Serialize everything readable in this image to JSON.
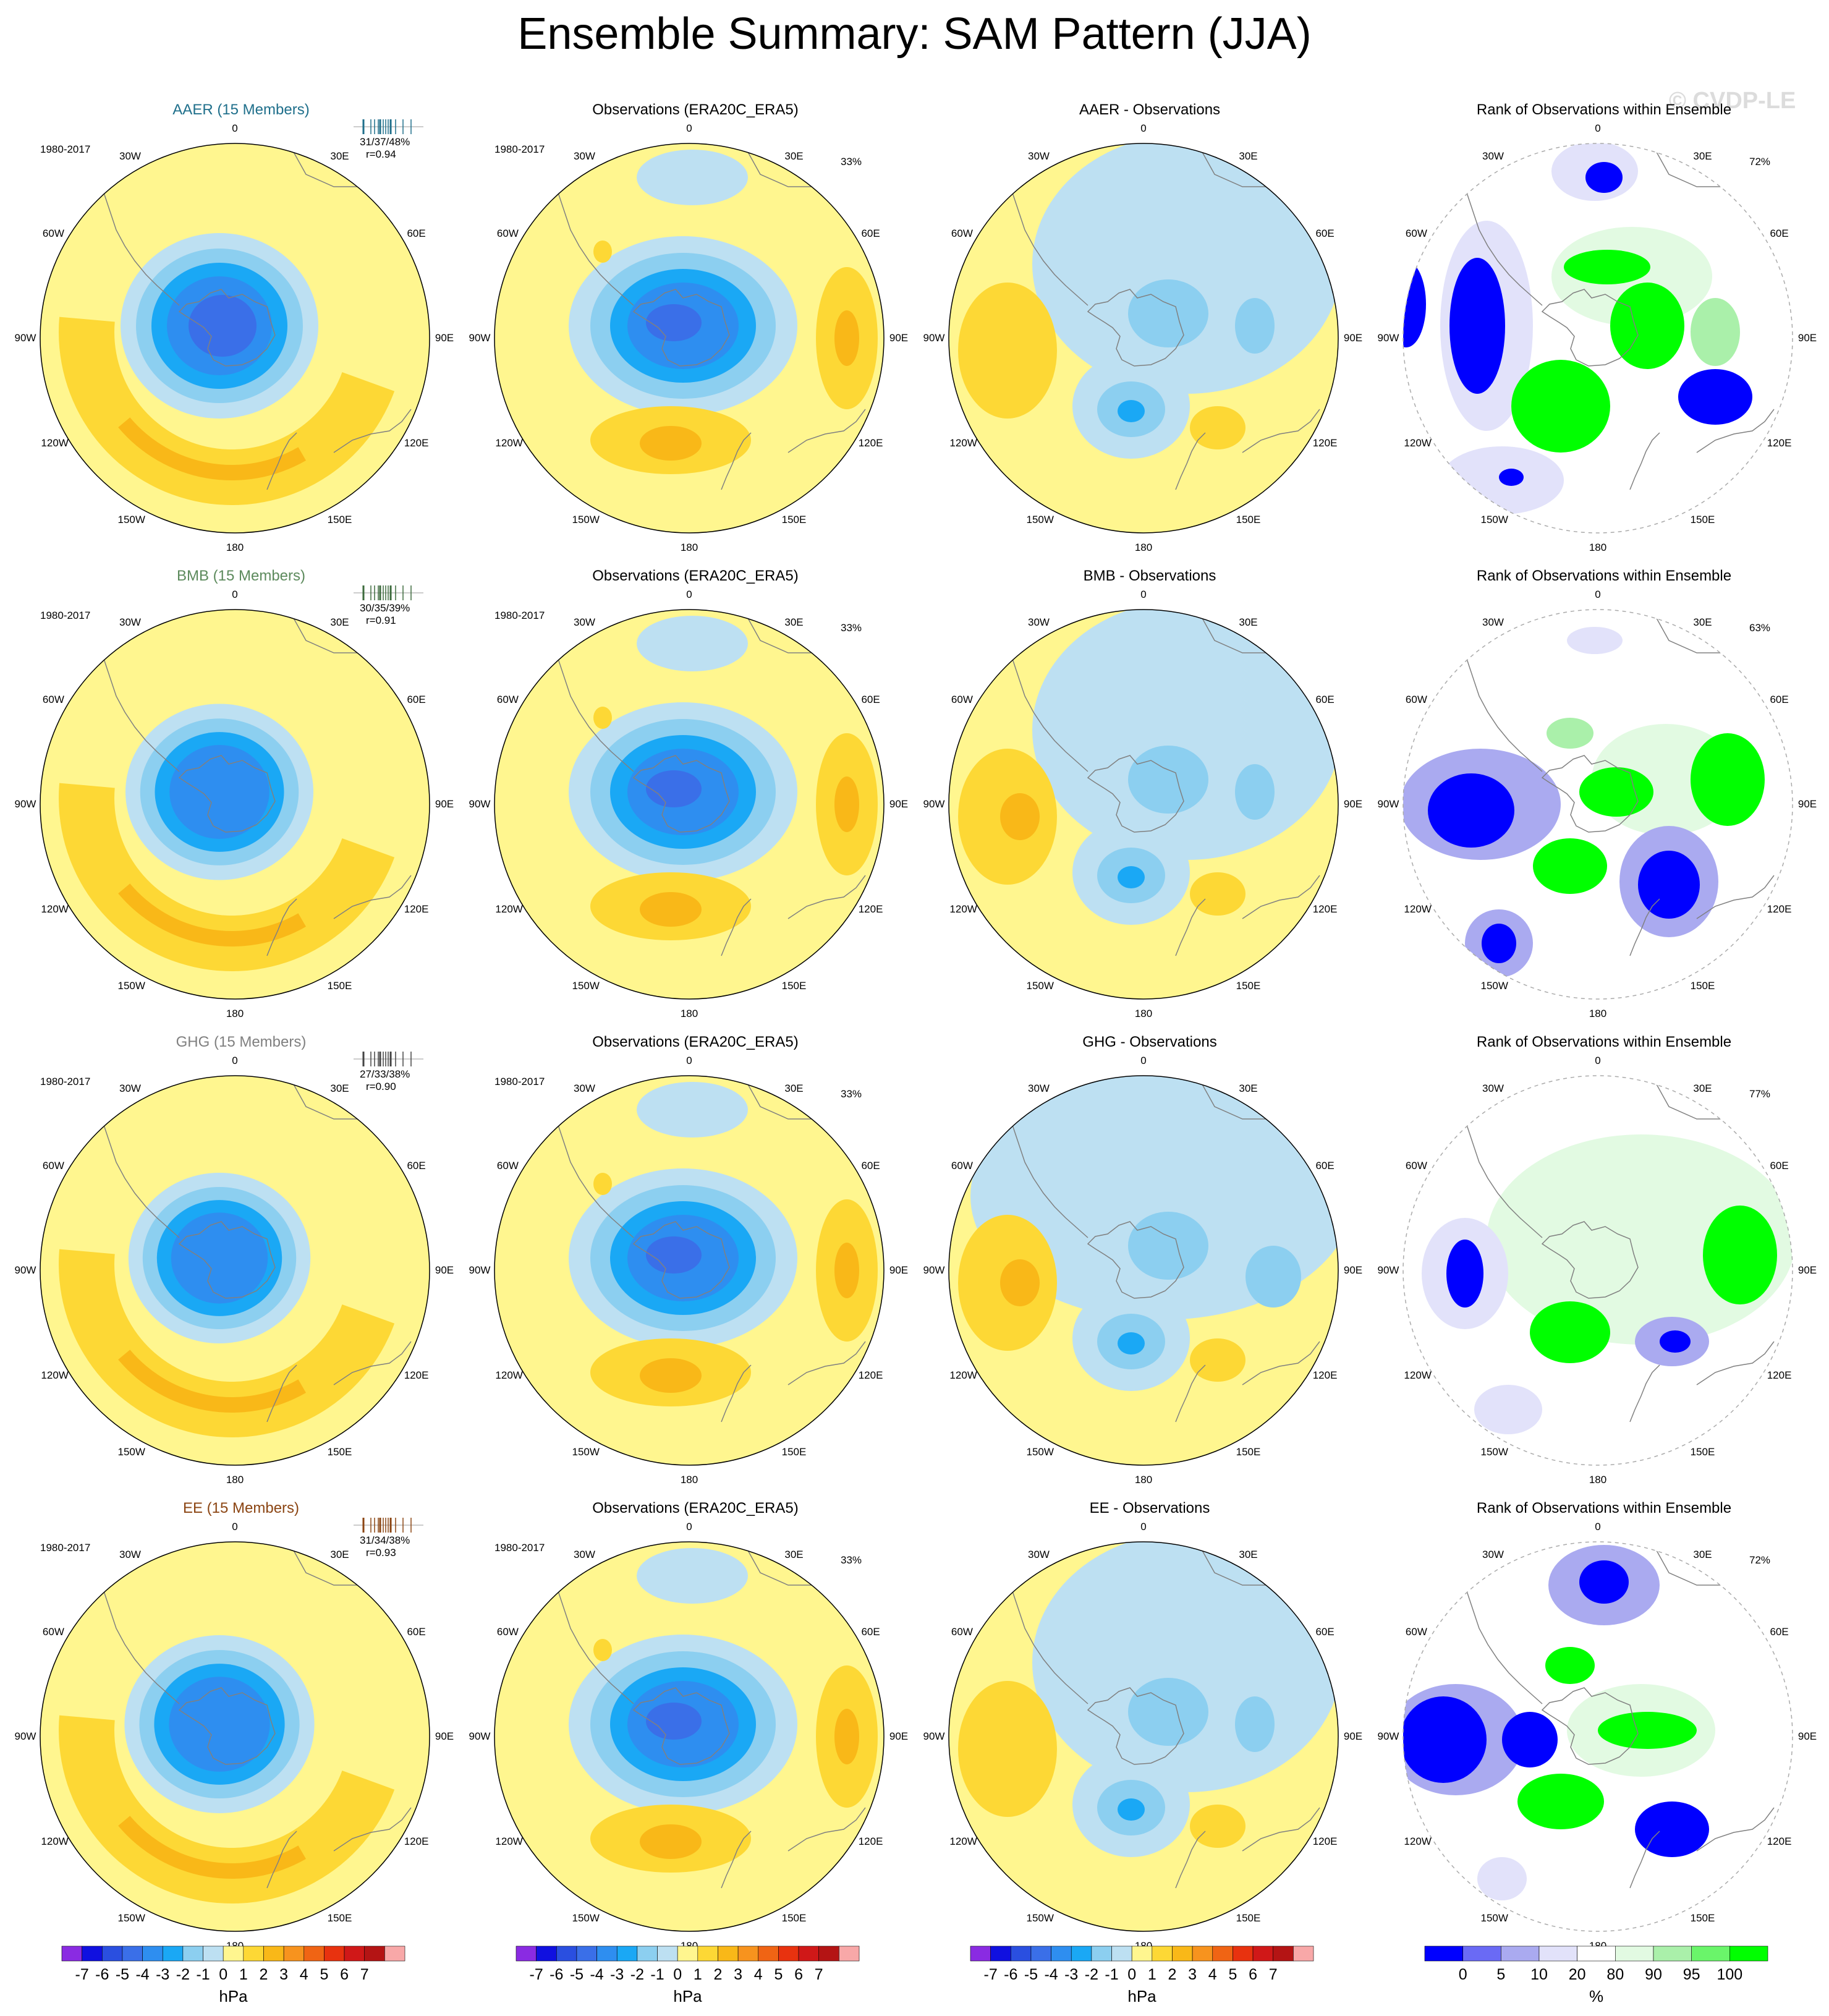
{
  "title": "Ensemble Summary: SAM Pattern (JJA)",
  "watermark": "© CVDP-LE",
  "rows": [
    {
      "ensemble": {
        "title": "AAER (15 Members)",
        "color": "#1f6f8b",
        "period": "1980-2017",
        "stats": "31/37/48%",
        "r": "r=0.94",
        "tick_color": "#1f6f8b"
      },
      "obs": {
        "title": "Observations (ERA20C_ERA5)",
        "period": "1980-2017",
        "pct": "33%"
      },
      "diff": {
        "title": "AAER - Observations"
      },
      "rank": {
        "title": "Rank of Observations within Ensemble",
        "pct": "72%"
      }
    },
    {
      "ensemble": {
        "title": "BMB (15 Members)",
        "color": "#5c8a5c",
        "period": "1980-2017",
        "stats": "30/35/39%",
        "r": "r=0.91",
        "tick_color": "#3d6b3d"
      },
      "obs": {
        "title": "Observations (ERA20C_ERA5)",
        "period": "1980-2017",
        "pct": "33%"
      },
      "diff": {
        "title": "BMB - Observations"
      },
      "rank": {
        "title": "Rank of Observations within Ensemble",
        "pct": "63%"
      }
    },
    {
      "ensemble": {
        "title": "GHG (15 Members)",
        "color": "#808080",
        "period": "1980-2017",
        "stats": "27/33/38%",
        "r": "r=0.90",
        "tick_color": "#444444"
      },
      "obs": {
        "title": "Observations (ERA20C_ERA5)",
        "period": "1980-2017",
        "pct": "33%"
      },
      "diff": {
        "title": "GHG - Observations"
      },
      "rank": {
        "title": "Rank of Observations within Ensemble",
        "pct": "77%"
      }
    },
    {
      "ensemble": {
        "title": "EE (15 Members)",
        "color": "#8b4513",
        "period": "1980-2017",
        "stats": "31/34/38%",
        "r": "r=0.93",
        "tick_color": "#8b4513"
      },
      "obs": {
        "title": "Observations (ERA20C_ERA5)",
        "period": "1980-2017",
        "pct": "33%"
      },
      "diff": {
        "title": "EE - Observations"
      },
      "rank": {
        "title": "Rank of Observations within Ensemble",
        "pct": "72%"
      }
    }
  ],
  "lon_labels": [
    "0",
    "30E",
    "60E",
    "90E",
    "120E",
    "150E",
    "180",
    "150W",
    "120W",
    "90W",
    "60W",
    "30W"
  ],
  "colorbar_hpa": {
    "unit": "hPa",
    "labels": [
      "-7",
      "-6",
      "-5",
      "-4",
      "-3",
      "-2",
      "-1",
      "0",
      "1",
      "2",
      "3",
      "4",
      "5",
      "6",
      "7"
    ],
    "colors": [
      "#8a2be2",
      "#1010e0",
      "#2a4fe0",
      "#3a6fe8",
      "#2e8ef0",
      "#1aa8f5",
      "#8ccff0",
      "#bde0f2",
      "#fff68f",
      "#fdd835",
      "#f9b818",
      "#f7931e",
      "#f06414",
      "#e8320f",
      "#d01818",
      "#b41414",
      "#f8a8a8"
    ]
  },
  "colorbar_rank": {
    "unit": "%",
    "labels": [
      "0",
      "5",
      "10",
      "20",
      "80",
      "90",
      "95",
      "100"
    ],
    "colors": [
      "#0000ff",
      "#6a6af5",
      "#aaaaf0",
      "#e2e2fa",
      "#ffffff",
      "#e2fae2",
      "#aaf0aa",
      "#6af56a",
      "#00ff00"
    ]
  }
}
